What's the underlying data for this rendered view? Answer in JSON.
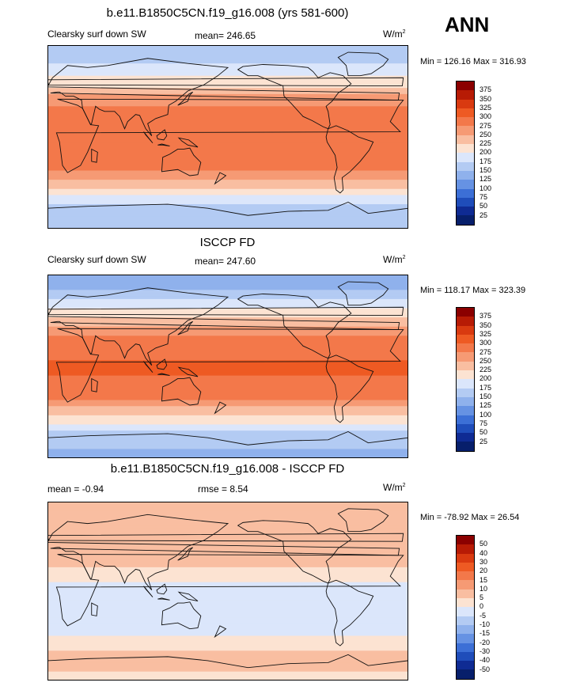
{
  "season": "ANN",
  "panels": [
    {
      "title": "b.e11.B1850C5CN.f19_g16.008 (yrs 581-600)",
      "left_label": "Clearsky surf down SW",
      "center_label": "mean= 246.65",
      "right_label": "W/m",
      "right_sup": "2",
      "minmax": "Min = 126.16 Max = 316.93",
      "colorbar_labels": [
        "375",
        "350",
        "325",
        "300",
        "275",
        "250",
        "225",
        "200",
        "175",
        "150",
        "125",
        "100",
        "75",
        "50",
        "25"
      ],
      "colorbar_colors": [
        "#8b0000",
        "#b71b05",
        "#d93a10",
        "#ee5a23",
        "#f3784a",
        "#f69a74",
        "#f9bea1",
        "#fce3d2",
        "#dbe6fb",
        "#b3cbf3",
        "#8fb1ec",
        "#6692e3",
        "#3c6fd6",
        "#1f4dba",
        "#0f2b93",
        "#071f6b"
      ],
      "lat_profile": [
        [
          90,
          175
        ],
        [
          75,
          170
        ],
        [
          60,
          200
        ],
        [
          50,
          220
        ],
        [
          40,
          255
        ],
        [
          30,
          275
        ],
        [
          20,
          290
        ],
        [
          0,
          300
        ],
        [
          -20,
          295
        ],
        [
          -30,
          280
        ],
        [
          -40,
          255
        ],
        [
          -50,
          225
        ],
        [
          -60,
          190
        ],
        [
          -70,
          165
        ],
        [
          -90,
          150
        ]
      ]
    },
    {
      "title": "ISCCP FD",
      "left_label": "Clearsky surf down SW",
      "center_label": "mean= 247.60",
      "right_label": "W/m",
      "right_sup": "2",
      "minmax": "Min = 118.17 Max = 323.39",
      "colorbar_labels": [
        "375",
        "350",
        "325",
        "300",
        "275",
        "250",
        "225",
        "200",
        "175",
        "150",
        "125",
        "100",
        "75",
        "50",
        "25"
      ],
      "colorbar_colors": [
        "#8b0000",
        "#b71b05",
        "#d93a10",
        "#ee5a23",
        "#f3784a",
        "#f69a74",
        "#f9bea1",
        "#fce3d2",
        "#dbe6fb",
        "#b3cbf3",
        "#8fb1ec",
        "#6692e3",
        "#3c6fd6",
        "#1f4dba",
        "#0f2b93",
        "#071f6b"
      ],
      "lat_profile": [
        [
          90,
          125
        ],
        [
          75,
          150
        ],
        [
          60,
          190
        ],
        [
          50,
          215
        ],
        [
          40,
          250
        ],
        [
          30,
          275
        ],
        [
          20,
          290
        ],
        [
          0,
          305
        ],
        [
          -20,
          295
        ],
        [
          -30,
          280
        ],
        [
          -40,
          250
        ],
        [
          -50,
          220
        ],
        [
          -60,
          185
        ],
        [
          -70,
          160
        ],
        [
          -90,
          140
        ]
      ]
    },
    {
      "title": "b.e11.B1850C5CN.f19_g16.008 - ISCCP FD",
      "left_label": "mean =  -0.94",
      "center_label": "rmse =   8.54",
      "right_label": "W/m",
      "right_sup": "2",
      "minmax": "Min = -78.92 Max =  26.54",
      "colorbar_labels": [
        "50",
        "40",
        "30",
        "20",
        "15",
        "10",
        "5",
        "0",
        "-5",
        "-10",
        "-15",
        "-20",
        "-30",
        "-40",
        "-50"
      ],
      "colorbar_colors": [
        "#8b0000",
        "#b71b05",
        "#d93a10",
        "#ee5a23",
        "#f3784a",
        "#f69a74",
        "#f9bea1",
        "#fce3d2",
        "#dbe6fb",
        "#b3cbf3",
        "#8fb1ec",
        "#6692e3",
        "#3c6fd6",
        "#1f4dba",
        "#0f2b93",
        "#071f6b"
      ],
      "lat_profile": [
        [
          90,
          10
        ],
        [
          70,
          8
        ],
        [
          50,
          10
        ],
        [
          30,
          7
        ],
        [
          15,
          3
        ],
        [
          0,
          -4
        ],
        [
          -20,
          -4
        ],
        [
          -40,
          -2
        ],
        [
          -60,
          5
        ],
        [
          -70,
          8
        ],
        [
          -90,
          3
        ]
      ]
    }
  ]
}
